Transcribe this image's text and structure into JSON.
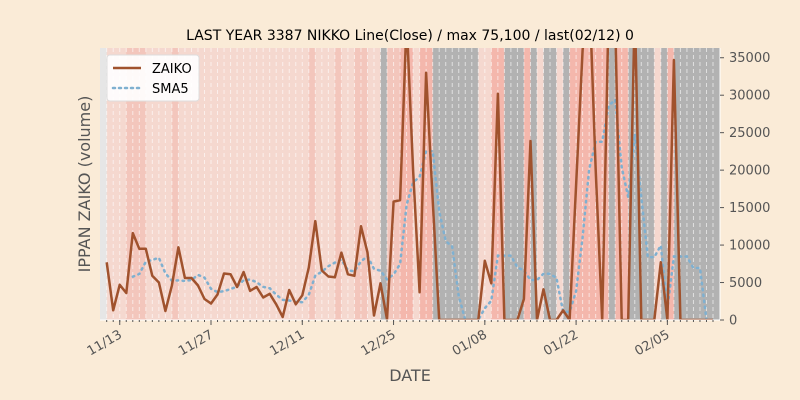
{
  "chart_data": {
    "type": "line",
    "title": "LAST YEAR 3387 NIKKO Line(Close) / max 75,100 / last(02/12) 0",
    "xlabel": "DATE",
    "ylabel": "IPPAN ZAIKO (volume)",
    "ylim": [
      0,
      36300
    ],
    "yticks": [
      0,
      5000,
      10000,
      15000,
      20000,
      25000,
      30000,
      35000
    ],
    "start_date": "11/11",
    "end_date": "02/12",
    "xtick_labels": [
      "11/13",
      "11/27",
      "12/11",
      "12/25",
      "01/08",
      "01/22",
      "02/05"
    ],
    "xtick_day_index": [
      2,
      16,
      30,
      44,
      58,
      72,
      86
    ],
    "legend": {
      "placement": "top-left",
      "entries": [
        "ZAIKO",
        "SMA5"
      ]
    },
    "series": [
      {
        "name": "ZAIKO",
        "color": "#a0522d",
        "style": "solid",
        "values": [
          7700,
          1300,
          4700,
          3600,
          11600,
          9500,
          9500,
          5900,
          5000,
          1200,
          4600,
          9700,
          5600,
          5600,
          4600,
          2800,
          2200,
          3400,
          6200,
          6100,
          4400,
          6400,
          3900,
          4400,
          3000,
          3500,
          2100,
          400,
          4000,
          2100,
          3300,
          7000,
          13200,
          6600,
          5800,
          5700,
          9000,
          6100,
          5900,
          12500,
          9000,
          600,
          4900,
          100,
          15800,
          16000,
          40000,
          20000,
          3700,
          33000,
          16000,
          0,
          0,
          0,
          0,
          0,
          0,
          0,
          7900,
          4900,
          30200,
          0,
          0,
          0,
          2800,
          23900,
          0,
          4100,
          0,
          0,
          1300,
          0,
          18000,
          36000,
          45000,
          20000,
          0,
          42000,
          40000,
          0,
          0,
          42000,
          0,
          0,
          0,
          7700,
          0,
          34700,
          0,
          0,
          0,
          0,
          0,
          0
        ]
      },
      {
        "name": "SMA5",
        "color": "#7fb0d0",
        "style": "dotted",
        "window": 5
      }
    ],
    "band_codes": "LLLMMMLLLLMLLLLLLLLLLLLLLLLLLLLMLLLMLLMMLLGMMSSLSSGGGGGGGLLSSGGGSGLGGLGSSSSSSGSSGGGGLGSGGGGGGG",
    "band_colors": {
      "L": "#f5d8cf",
      "M": "#f3c6bc",
      "S": "#f4b7ac",
      "G": "#b2b2b2",
      "edge": "#e6e6e6"
    }
  }
}
